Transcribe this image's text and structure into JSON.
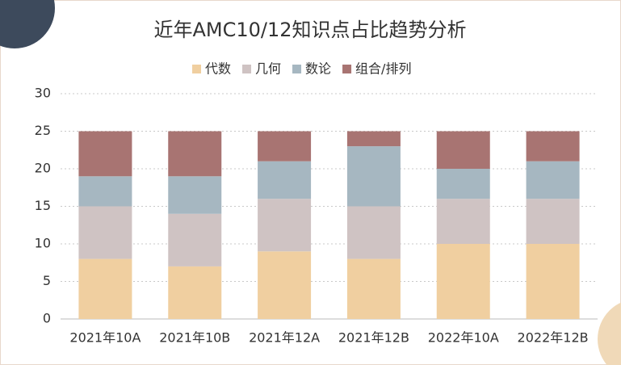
{
  "chart_data": {
    "type": "stacked_bar",
    "title": "近年AMC10/12知识点占比趋势分析",
    "categories": [
      "2021年10A",
      "2021年10B",
      "2021年12A",
      "2021年12B",
      "2022年10A",
      "2022年12B"
    ],
    "series": [
      {
        "name": "代数",
        "color": "#f0cfa0",
        "values": [
          8,
          7,
          9,
          8,
          10,
          10
        ]
      },
      {
        "name": "几何",
        "color": "#cfc3c3",
        "values": [
          7,
          7,
          7,
          7,
          6,
          6
        ]
      },
      {
        "name": "数论",
        "color": "#a6b7c1",
        "values": [
          4,
          5,
          5,
          8,
          4,
          5
        ]
      },
      {
        "name": "组合/排列",
        "color": "#a87472",
        "values": [
          6,
          6,
          4,
          2,
          5,
          4
        ]
      }
    ],
    "ylim": [
      0,
      30
    ],
    "yticks": [
      0,
      5,
      10,
      15,
      20,
      25,
      30
    ],
    "grid": true,
    "legend": "top"
  }
}
